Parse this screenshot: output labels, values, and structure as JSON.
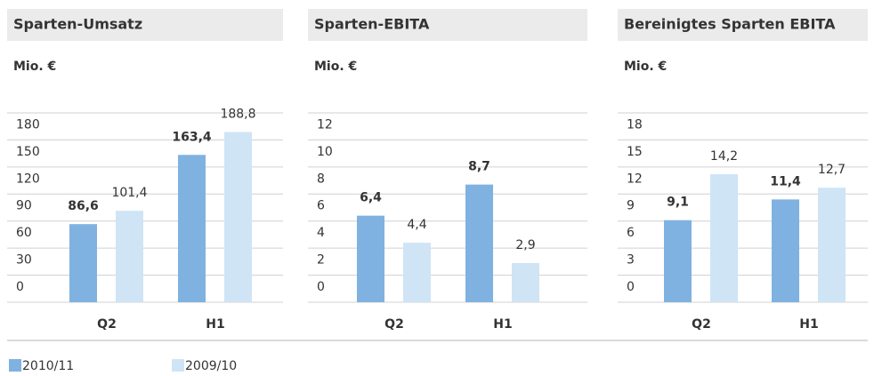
{
  "legend": [
    {
      "name": "2010/11",
      "color": "#7fb2e0"
    },
    {
      "name": "2009/10",
      "color": "#cfe4f5"
    }
  ],
  "chart_data": [
    {
      "type": "bar",
      "title": "Sparten-Umsatz",
      "y_label": "Mio. €",
      "categories": [
        "Q2",
        "H1"
      ],
      "series": [
        {
          "values": [
            86.6,
            163.4
          ],
          "value_labels": [
            "86,6",
            "163,4"
          ]
        },
        {
          "values": [
            101.4,
            188.8
          ],
          "value_labels": [
            "101,4",
            "188,8"
          ]
        }
      ],
      "ylim": [
        0,
        210
      ],
      "yticks": [
        0,
        30,
        60,
        90,
        120,
        150,
        180
      ],
      "grid": true
    },
    {
      "type": "bar",
      "title": "Sparten-EBITA",
      "y_label": "Mio. €",
      "categories": [
        "Q2",
        "H1"
      ],
      "series": [
        {
          "values": [
            6.4,
            8.7
          ],
          "value_labels": [
            "6,4",
            "8,7"
          ]
        },
        {
          "values": [
            4.4,
            2.9
          ],
          "value_labels": [
            "4,4",
            "2,9"
          ]
        }
      ],
      "ylim": [
        0,
        14
      ],
      "yticks": [
        0,
        2,
        4,
        6,
        8,
        10,
        12
      ],
      "grid": true
    },
    {
      "type": "bar",
      "title": "Bereinigtes Sparten EBITA",
      "y_label": "Mio. €",
      "categories": [
        "Q2",
        "H1"
      ],
      "series": [
        {
          "values": [
            9.1,
            11.4
          ],
          "value_labels": [
            "9,1",
            "11,4"
          ]
        },
        {
          "values": [
            14.2,
            12.7
          ],
          "value_labels": [
            "14,2",
            "12,7"
          ]
        }
      ],
      "ylim": [
        0,
        21
      ],
      "yticks": [
        0,
        3,
        6,
        9,
        12,
        15,
        18
      ],
      "grid": true
    }
  ]
}
